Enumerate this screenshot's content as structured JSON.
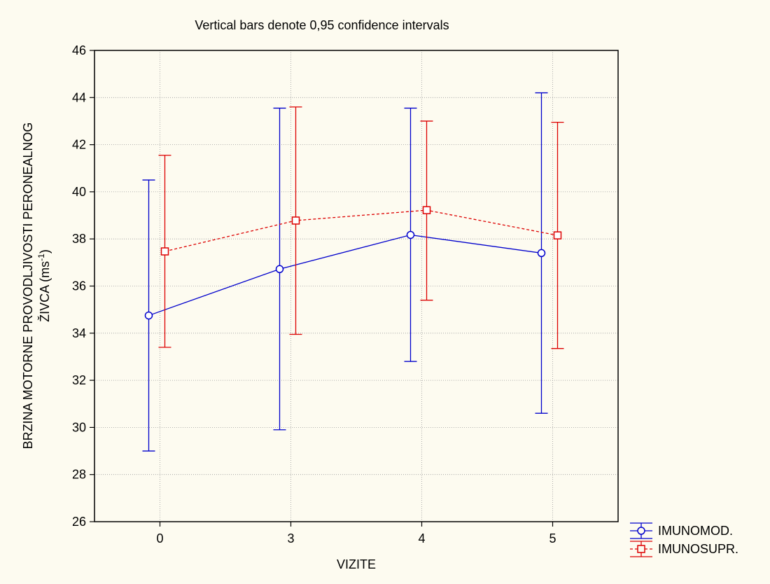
{
  "chart_data": {
    "type": "line",
    "title": "Vertical bars denote 0,95 confidence intervals",
    "xlabel": "VIZITE",
    "ylabel_line1": "BRZINA MOTORNE PROVODLJIVOSTI PERONEALNOG",
    "ylabel_line2_prefix": "ŽIVCA (ms",
    "ylabel_line2_sup": "-1",
    "ylabel_line2_suffix": ")",
    "categories": [
      "0",
      "3",
      "4",
      "5"
    ],
    "ylim": [
      26,
      46
    ],
    "yticks": [
      "26",
      "28",
      "30",
      "32",
      "34",
      "36",
      "38",
      "40",
      "42",
      "44",
      "46"
    ],
    "grid": true,
    "legend_position": "bottom-right outside",
    "series": [
      {
        "name": "IMUNOMOD.",
        "color": "#0000cc",
        "marker": "circle",
        "line_style": "solid",
        "values": [
          34.75,
          36.72,
          38.17,
          37.4
        ],
        "ci_low": [
          29.0,
          29.9,
          32.8,
          30.6
        ],
        "ci_high": [
          40.5,
          43.55,
          43.55,
          44.2
        ]
      },
      {
        "name": "IMUNOSUPR.",
        "color": "#dd0000",
        "marker": "square",
        "line_style": "dashed",
        "values": [
          37.47,
          38.78,
          39.22,
          38.15
        ],
        "ci_low": [
          33.4,
          33.95,
          35.4,
          33.35
        ],
        "ci_high": [
          41.55,
          43.6,
          43.0,
          42.95
        ]
      }
    ]
  }
}
